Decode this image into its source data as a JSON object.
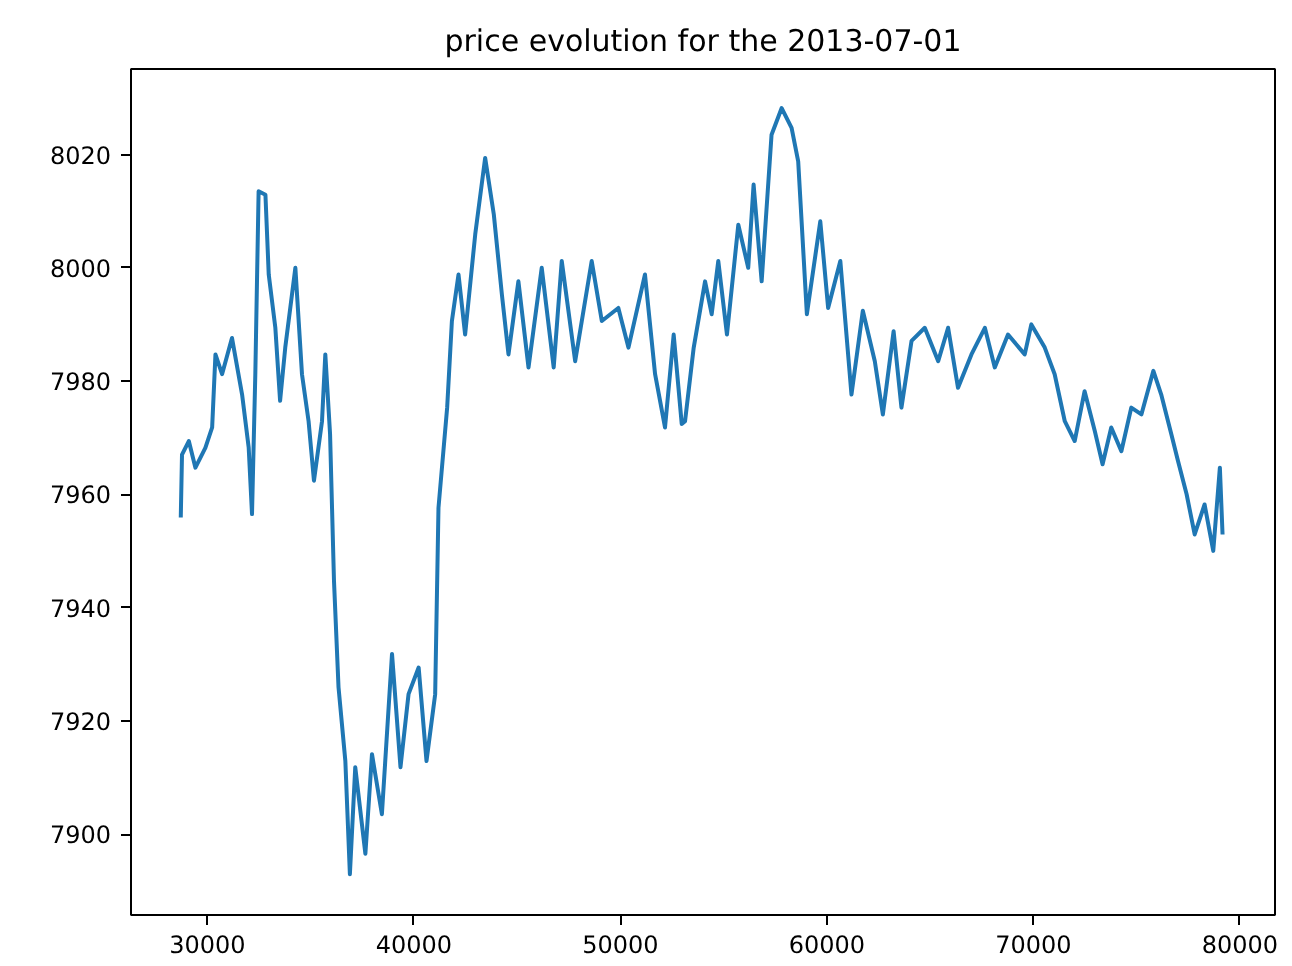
{
  "chart_data": {
    "type": "line",
    "title": "price evolution for the 2013-07-01",
    "xlim": [
      26300,
      81700
    ],
    "xticks": [
      30000,
      40000,
      50000,
      60000,
      70000,
      80000
    ],
    "ylim": [
      7885.7,
      8035.1
    ],
    "yticks": [
      7900,
      7920,
      7940,
      7960,
      7980,
      8000,
      8020
    ],
    "grid": false,
    "marker": "none",
    "line_style": "solid",
    "series": [
      {
        "color": "#1f77b4",
        "x": [
          28710,
          28770,
          29100,
          29420,
          29900,
          30230,
          30390,
          30710,
          31190,
          31680,
          32000,
          32160,
          32320,
          32480,
          32810,
          32970,
          33290,
          33520,
          33770,
          34260,
          34580,
          34900,
          35160,
          35550,
          35710,
          35940,
          36130,
          36350,
          36680,
          36900,
          37160,
          37650,
          37970,
          38450,
          38940,
          39350,
          39740,
          40230,
          40610,
          41030,
          41190,
          41610,
          41840,
          42160,
          42480,
          42970,
          43450,
          43870,
          44260,
          44580,
          45060,
          45550,
          46190,
          46770,
          47160,
          47810,
          48610,
          49100,
          49900,
          50390,
          51190,
          51680,
          52160,
          52580,
          52970,
          53130,
          53550,
          54100,
          54420,
          54740,
          55160,
          55710,
          56190,
          56450,
          56840,
          57320,
          57810,
          58290,
          58610,
          59030,
          59680,
          60060,
          60650,
          61190,
          61740,
          62320,
          62710,
          63230,
          63610,
          64100,
          64740,
          65390,
          65870,
          66350,
          67000,
          67650,
          68130,
          68770,
          69580,
          69900,
          70550,
          71030,
          71520,
          72000,
          72480,
          72970,
          73350,
          73770,
          74260,
          74740,
          75230,
          75810,
          76190,
          76680,
          77000,
          77420,
          77810,
          78290,
          78710,
          79030,
          79160
        ],
        "values": [
          7955.9,
          7967,
          7969.4,
          7964.7,
          7968.2,
          7971.8,
          7984.7,
          7981.2,
          7987.6,
          7977.6,
          7968.2,
          7956.5,
          7981.2,
          8013.5,
          8012.9,
          7998.8,
          7989.4,
          7976.5,
          7985.9,
          8000,
          7981.2,
          7972.9,
          7962.4,
          7972.9,
          7984.7,
          7970.6,
          7944.7,
          7925.9,
          7912.9,
          7892.9,
          7911.8,
          7896.5,
          7914.1,
          7903.5,
          7931.8,
          7911.8,
          7924.7,
          7929.4,
          7912.9,
          7924.7,
          7957.6,
          7975.3,
          7990.6,
          7998.8,
          7988.2,
          8005.9,
          8019.4,
          8009.4,
          7995.3,
          7984.7,
          7997.6,
          7982.4,
          8000,
          7982.4,
          8001.2,
          7983.5,
          8001.2,
          7990.6,
          7992.9,
          7985.9,
          7998.8,
          7981.2,
          7971.8,
          7988.2,
          7972.4,
          7972.9,
          7985.9,
          7997.6,
          7991.8,
          8001.2,
          7988.2,
          8007.6,
          8000,
          8014.7,
          7997.6,
          8023.5,
          8028.2,
          8024.7,
          8018.8,
          7991.8,
          8008.2,
          7992.9,
          8001.2,
          7977.6,
          7992.4,
          7983.5,
          7974.1,
          7988.8,
          7975.3,
          7987.1,
          7989.4,
          7983.5,
          7989.4,
          7978.8,
          7984.7,
          7989.4,
          7982.4,
          7988.2,
          7984.7,
          7990,
          7985.9,
          7981.2,
          7972.9,
          7969.4,
          7978.2,
          7971.2,
          7965.3,
          7971.8,
          7967.6,
          7975.3,
          7974.1,
          7981.8,
          7977.6,
          7970.6,
          7965.9,
          7960,
          7952.9,
          7958.2,
          7950,
          7964.7,
          7952.9
        ]
      }
    ]
  }
}
